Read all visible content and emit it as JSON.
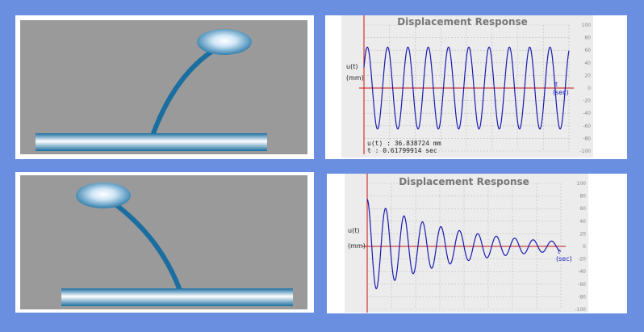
{
  "colors": {
    "desktop": "#6b8fe0",
    "scene_bg": "#9a9a9a",
    "plot_bg": "#ececec",
    "rod": "#1a6ea0",
    "curve": "#1a1ab0",
    "axis": "#cc1111",
    "grid": "#bdbdbd"
  },
  "panels": [
    {
      "scene": {
        "bend": 0.55,
        "mass_icon": "sphere-mass-icon",
        "base_icon": "ground-plate-icon"
      },
      "chart_data": {
        "type": "line",
        "title": "Displacement Response",
        "ylabel_top": "u(t)",
        "ylabel_unit": "(mm)",
        "xlabel_top": "t",
        "xlabel_unit": "(sec)",
        "yticks": [
          100,
          80,
          60,
          40,
          20,
          0,
          -20,
          -40,
          -60,
          -80,
          -100
        ],
        "ylim": [
          -100,
          100
        ],
        "grid": true,
        "series": [
          {
            "amplitude": 65,
            "cycles": 10.1,
            "decay": 0.0,
            "phase_deg": 30,
            "t_max": 10
          }
        ],
        "readout_u": "u(t) : 36.838724 mm",
        "readout_t": "t : 0.61799914 sec"
      }
    },
    {
      "scene": {
        "bend": -0.45,
        "mass_icon": "sphere-mass-icon",
        "base_icon": "ground-plate-icon"
      },
      "chart_data": {
        "type": "line",
        "title": "Displacement Response",
        "ylabel_top": "u(t)",
        "ylabel_unit": "(mm)",
        "xlabel_top": "t",
        "xlabel_unit": "(sec)",
        "yticks": [
          100,
          80,
          60,
          40,
          20,
          0,
          -20,
          -40,
          -60,
          -80,
          -100
        ],
        "ylim": [
          -100,
          100
        ],
        "grid": true,
        "series": [
          {
            "amplitude": 75,
            "cycles": 10.5,
            "decay": 0.23,
            "phase_deg": 90,
            "t_max": 10
          }
        ]
      }
    }
  ]
}
